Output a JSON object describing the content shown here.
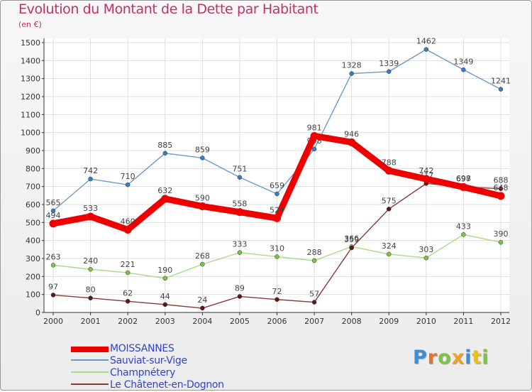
{
  "chart_data": {
    "type": "line",
    "title": "Evolution du Montant de la Dette par Habitant",
    "subtitle": "(en €)",
    "x": [
      "2000",
      "2001",
      "2002",
      "2003",
      "2004",
      "2005",
      "2006",
      "2007",
      "2008",
      "2009",
      "2010",
      "2011",
      "2012"
    ],
    "ylim": [
      0,
      1500
    ],
    "yticks": [
      0,
      100,
      200,
      300,
      400,
      500,
      600,
      700,
      800,
      900,
      1000,
      1100,
      1200,
      1300,
      1400,
      1500
    ],
    "grid": true,
    "legend_position": "bottom-left",
    "series": [
      {
        "name": "Sauviat-sur-Vige",
        "color": "#6b9bc8",
        "marker": "#3a7cc0",
        "values": [
          565,
          742,
          710,
          885,
          859,
          751,
          659,
          908,
          1328,
          1339,
          1462,
          1349,
          1241
        ]
      },
      {
        "name": "Champnétery",
        "color": "#a8dc80",
        "marker": "#7cc443",
        "values": [
          263,
          240,
          221,
          190,
          268,
          333,
          310,
          288,
          366,
          324,
          303,
          433,
          390
        ]
      },
      {
        "name": "Le Châtenet-en-Dognon",
        "color": "#8a3a3a",
        "marker": "#5a1a1a",
        "values": [
          97,
          80,
          62,
          44,
          24,
          89,
          72,
          57,
          359,
          575,
          717,
          698,
          688
        ]
      },
      {
        "name": "MOISSANNES",
        "color": "#ee0000",
        "marker": "#ee0000",
        "values": [
          494,
          533,
          460,
          632,
          590,
          558,
          524,
          981,
          946,
          788,
          742,
          697,
          648
        ]
      }
    ]
  },
  "legend": [
    {
      "label": "MOISSANNES",
      "color": "#ee0000"
    },
    {
      "label": "Sauviat-sur-Vige",
      "color": "#6b9bc8"
    },
    {
      "label": "Champnétery",
      "color": "#a8dc80"
    },
    {
      "label": "Le Châtenet-en-Dognon",
      "color": "#8a3a3a"
    }
  ],
  "logo": {
    "text": "Proxiti",
    "colors": [
      "#3a8fd8",
      "#e8732a",
      "#7cc443",
      "#f0a020",
      "#3a8fd8",
      "#e8c020",
      "#7cc443"
    ]
  }
}
